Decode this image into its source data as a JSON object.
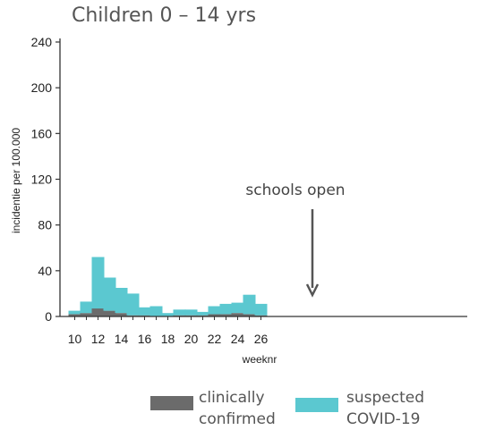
{
  "chart_data": {
    "type": "bar",
    "stacked": true,
    "title": "Children 0 – 14 yrs",
    "xlabel": "weeknr",
    "ylabel": "incidentie per 100.000",
    "ylim": [
      0,
      240
    ],
    "yticks": [
      0,
      40,
      80,
      120,
      160,
      200,
      240
    ],
    "x": [
      10,
      11,
      12,
      13,
      14,
      15,
      16,
      17,
      18,
      19,
      20,
      21,
      22,
      23,
      24,
      25,
      26
    ],
    "xticks": [
      10,
      12,
      14,
      16,
      18,
      20,
      22,
      24,
      26
    ],
    "grid": false,
    "legend_position": "bottom",
    "series": [
      {
        "name": "clinically confirmed",
        "color": "#6b6b6b",
        "values": [
          2,
          3,
          7,
          5,
          3,
          1,
          1,
          0,
          0,
          1,
          1,
          1,
          2,
          2,
          3,
          2,
          1
        ]
      },
      {
        "name": "suspected COVID-19",
        "color": "#5bc8d0",
        "values": [
          3,
          10,
          45,
          29,
          22,
          19,
          7,
          9,
          3,
          5,
          5,
          3,
          7,
          9,
          9,
          17,
          10
        ]
      }
    ],
    "annotations": [
      {
        "text": "schools open",
        "x": 20
      }
    ]
  },
  "legend": {
    "confirmed_line1": "clinically",
    "confirmed_line2": "confirmed",
    "suspected_line1": "suspected",
    "suspected_line2": "COVID-19"
  }
}
